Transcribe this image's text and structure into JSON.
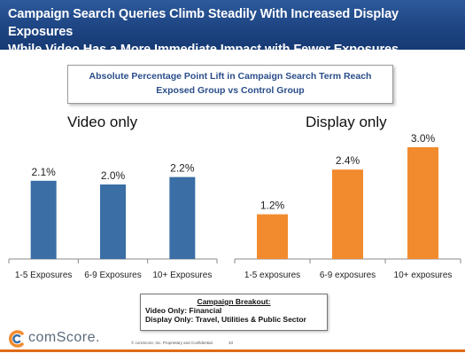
{
  "header": {
    "title_line1": "Campaign Search Queries Climb Steadily With Increased Display Exposures",
    "title_line2": "While Video Has a More Immediate Impact with Fewer Exposures",
    "background_color": "#1e4583"
  },
  "subtitle": {
    "line1": "Absolute Percentage Point Lift in Campaign Search Term Reach",
    "line2": "Exposed Group vs Control Group"
  },
  "chart_data": [
    {
      "type": "bar",
      "title": "Video only",
      "categories": [
        "1-5 Exposures",
        "6-9 Exposures",
        "10+ Exposures"
      ],
      "values": [
        2.1,
        2.0,
        2.2
      ],
      "data_labels": [
        "2.1%",
        "2.0%",
        "2.2%"
      ],
      "ylim": [
        0,
        3.5
      ],
      "color": "#3a6ea5",
      "grid": false,
      "legend": "none"
    },
    {
      "type": "bar",
      "title": "Display only",
      "categories": [
        "1-5 exposures",
        "6-9 exposures",
        "10+ exposures"
      ],
      "values": [
        1.2,
        2.4,
        3.0
      ],
      "data_labels": [
        "1.2%",
        "2.4%",
        "3.0%"
      ],
      "ylim": [
        0,
        3.5
      ],
      "color": "#f28b2e",
      "grid": false,
      "legend": "none"
    }
  ],
  "breakout": {
    "heading": "Campaign Breakout:",
    "line1": "Video Only: Financial",
    "line2": "Display Only: Travel, Utilities & Public Sector"
  },
  "footer": {
    "logo_text": "comScore.",
    "copyright": "© comScore, Inc.   Proprietary and Confidential.",
    "page_number": "33",
    "accent_color": "#e06a1a"
  }
}
